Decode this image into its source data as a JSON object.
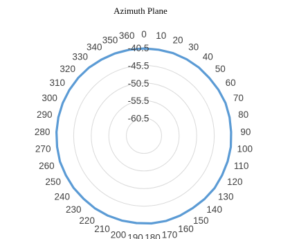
{
  "chart_data": {
    "type": "radar",
    "title": "Azimuth Plane",
    "angle_labels": [
      "0",
      "10",
      "20",
      "30",
      "40",
      "50",
      "60",
      "70",
      "80",
      "90",
      "100",
      "110",
      "120",
      "130",
      "140",
      "150",
      "160",
      "170",
      "180",
      "190",
      "200",
      "210",
      "220",
      "230",
      "240",
      "250",
      "260",
      "270",
      "280",
      "290",
      "300",
      "310",
      "320",
      "330",
      "340",
      "350",
      "360"
    ],
    "radial_axis": {
      "tick_labels": [
        "-40.5",
        "-45.5",
        "-50.5",
        "-55.5",
        "-60.5"
      ],
      "ticks": [
        -40.5,
        -45.5,
        -50.5,
        -55.5,
        -60.5
      ],
      "min": -65.5,
      "max": -40.5
    },
    "grid": true,
    "series": [
      {
        "color": "#5b9bd5",
        "values": [
          -40.7,
          -40.7,
          -40.6,
          -40.6,
          -40.6,
          -40.7,
          -40.6,
          -40.5,
          -40.6,
          -40.7,
          -40.6,
          -40.6,
          -40.6,
          -40.5,
          -40.6,
          -40.7,
          -40.6,
          -40.5,
          -40.5,
          -40.6,
          -40.6,
          -40.6,
          -40.6,
          -40.7,
          -40.6,
          -40.6,
          -40.5,
          -40.6,
          -40.6,
          -40.6,
          -40.6,
          -40.6,
          -40.6,
          -40.6,
          -40.7,
          -40.7,
          -40.7
        ]
      }
    ]
  }
}
